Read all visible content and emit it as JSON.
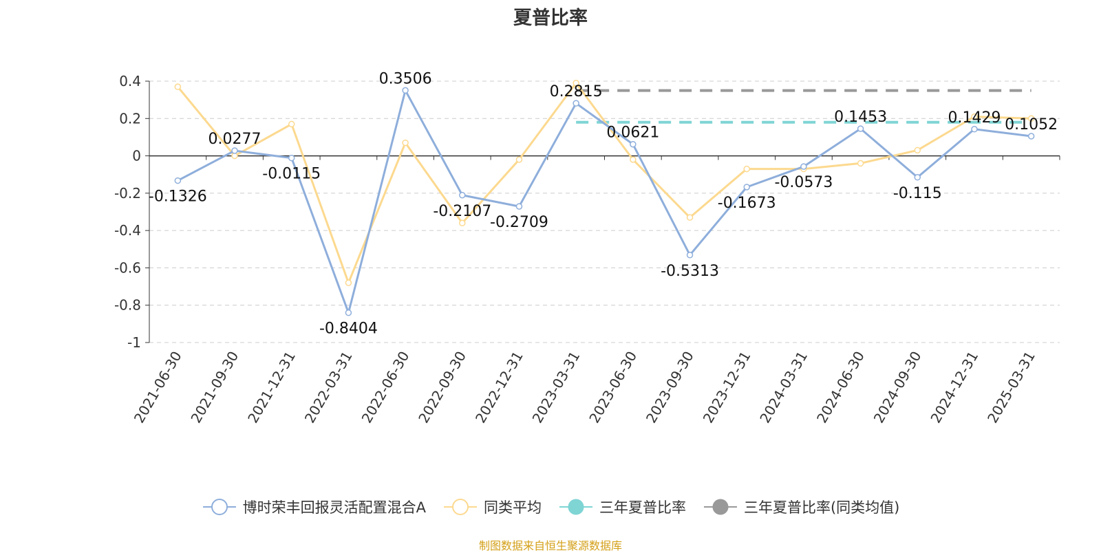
{
  "title": "夏普比率",
  "source_note": "制图数据来自恒生聚源数据库",
  "colors": {
    "fund": "#8eaedb",
    "peer": "#fcd98f",
    "three_year": "#7fd4d4",
    "three_year_peer": "#999999",
    "axis": "#333333",
    "grid": "#cccccc"
  },
  "legend": [
    {
      "label": "博时荣丰回报灵活配置混合A",
      "color": "#8eaedb",
      "marker": "hollow-circle"
    },
    {
      "label": "同类平均",
      "color": "#fcd98f",
      "marker": "hollow-circle"
    },
    {
      "label": "三年夏普比率",
      "color": "#7fd4d4",
      "marker": "filled-circle"
    },
    {
      "label": "三年夏普比率(同类均值)",
      "color": "#999999",
      "marker": "filled-circle"
    }
  ],
  "chart_data": {
    "type": "line",
    "title": "夏普比率",
    "xlabel": "",
    "ylabel": "",
    "ylim": [
      -1,
      0.4
    ],
    "yticks": [
      0.4,
      0.2,
      0,
      -0.2,
      -0.4,
      -0.6,
      -0.8,
      -1
    ],
    "ytick_labels": [
      "0.4",
      "0.2",
      "0",
      "-0.2",
      "-0.4",
      "-0.6",
      "-0.8",
      "-1"
    ],
    "grid": true,
    "legend_position": "bottom",
    "categories": [
      "2021-06-30",
      "2021-09-30",
      "2021-12-31",
      "2022-03-31",
      "2022-06-30",
      "2022-09-30",
      "2022-12-31",
      "2023-03-31",
      "2023-06-30",
      "2023-09-30",
      "2023-12-31",
      "2024-03-31",
      "2024-06-30",
      "2024-09-30",
      "2024-12-31",
      "2025-03-31"
    ],
    "series": [
      {
        "name": "博时荣丰回报灵活配置混合A",
        "values": [
          -0.1326,
          0.0277,
          -0.0115,
          -0.8404,
          0.3506,
          -0.2107,
          -0.2709,
          0.2815,
          0.0621,
          -0.5313,
          -0.1673,
          -0.0573,
          0.1453,
          -0.115,
          0.1429,
          0.1052
        ],
        "labels": [
          "-0.1326",
          "0.0277",
          "-0.0115",
          "-0.8404",
          "0.3506",
          "-0.2107",
          "-0.2709",
          "0.2815",
          "0.0621",
          "-0.5313",
          "-0.1673",
          "-0.0573",
          "0.1453",
          "-0.115",
          "0.1429",
          "0.1052"
        ]
      },
      {
        "name": "同类平均",
        "values": [
          0.37,
          0.0,
          0.17,
          -0.68,
          0.07,
          -0.36,
          -0.02,
          0.39,
          -0.02,
          -0.33,
          -0.07,
          -0.07,
          -0.04,
          0.03,
          0.21,
          0.2
        ]
      }
    ],
    "reference_lines": [
      {
        "name": "三年夏普比率",
        "value": 0.18,
        "from": "2023-03-31",
        "to": "2025-03-31"
      },
      {
        "name": "三年夏普比率(同类均值)",
        "value": 0.35,
        "from": "2023-03-31",
        "to": "2025-03-31"
      }
    ]
  }
}
